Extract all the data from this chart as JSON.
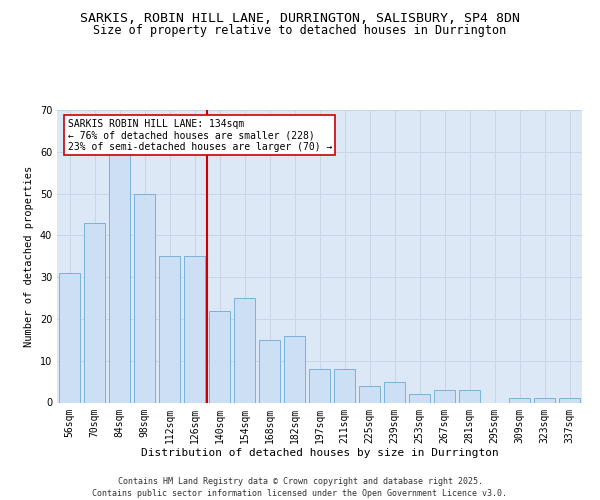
{
  "title1": "SARKIS, ROBIN HILL LANE, DURRINGTON, SALISBURY, SP4 8DN",
  "title2": "Size of property relative to detached houses in Durrington",
  "xlabel": "Distribution of detached houses by size in Durrington",
  "ylabel": "Number of detached properties",
  "categories": [
    "56sqm",
    "70sqm",
    "84sqm",
    "98sqm",
    "112sqm",
    "126sqm",
    "140sqm",
    "154sqm",
    "168sqm",
    "182sqm",
    "197sqm",
    "211sqm",
    "225sqm",
    "239sqm",
    "253sqm",
    "267sqm",
    "281sqm",
    "295sqm",
    "309sqm",
    "323sqm",
    "337sqm"
  ],
  "values": [
    31,
    43,
    63,
    50,
    35,
    35,
    22,
    25,
    15,
    16,
    8,
    8,
    4,
    5,
    2,
    3,
    3,
    0,
    1,
    1,
    1
  ],
  "bar_color": "#ccdff5",
  "bar_edge_color": "#6aaad4",
  "grid_color": "#c8d4e8",
  "bg_color": "#dce8f5",
  "vline_color": "#cc0000",
  "vline_index": 6,
  "annotation_text": "SARKIS ROBIN HILL LANE: 134sqm\n← 76% of detached houses are smaller (228)\n23% of semi-detached houses are larger (70) →",
  "annotation_box_color": "#cc0000",
  "ylim": [
    0,
    70
  ],
  "yticks": [
    0,
    10,
    20,
    30,
    40,
    50,
    60,
    70
  ],
  "footer": "Contains HM Land Registry data © Crown copyright and database right 2025.\nContains public sector information licensed under the Open Government Licence v3.0.",
  "title1_fontsize": 9.5,
  "title2_fontsize": 8.5,
  "xlabel_fontsize": 8,
  "ylabel_fontsize": 7.5,
  "tick_fontsize": 7,
  "annotation_fontsize": 7,
  "footer_fontsize": 6
}
